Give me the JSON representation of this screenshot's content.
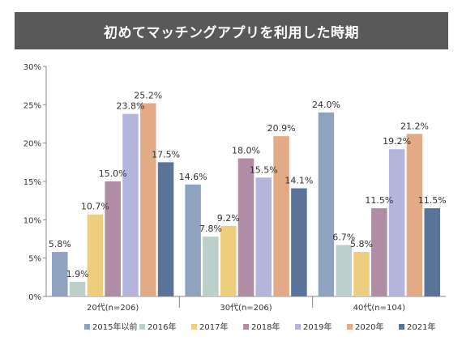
{
  "chart_data": {
    "type": "bar",
    "title": "初めてマッチングアプリを利用した時期",
    "categories": [
      "20代(n=206)",
      "30代(n=206)",
      "40代(n=104)"
    ],
    "series": [
      {
        "name": "2015年以前",
        "color": "#8FA3BF",
        "values": [
          5.8,
          14.6,
          24.0
        ],
        "labels": [
          "5.8%",
          "14.6%",
          "24.0%"
        ]
      },
      {
        "name": "2016年",
        "color": "#BCCFCB",
        "values": [
          1.9,
          7.8,
          6.7
        ],
        "labels": [
          "1.9%",
          "7.8%",
          "6.7%"
        ]
      },
      {
        "name": "2017年",
        "color": "#EDCE7E",
        "values": [
          10.7,
          9.2,
          5.8
        ],
        "labels": [
          "10.7%",
          "9.2%",
          "5.8%"
        ]
      },
      {
        "name": "2018年",
        "color": "#B08DA4",
        "values": [
          15.0,
          18.0,
          11.5
        ],
        "labels": [
          "15.0%",
          "18.0%",
          "11.5%"
        ]
      },
      {
        "name": "2019年",
        "color": "#B4B4DD",
        "values": [
          23.8,
          15.5,
          19.2
        ],
        "labels": [
          "23.8%",
          "15.5%",
          "19.2%"
        ]
      },
      {
        "name": "2020年",
        "color": "#E3AA86",
        "values": [
          25.2,
          20.9,
          21.2
        ],
        "labels": [
          "25.2%",
          "20.9%",
          "21.2%"
        ]
      },
      {
        "name": "2021年",
        "color": "#5A7398",
        "values": [
          17.5,
          14.1,
          11.5
        ],
        "labels": [
          "17.5%",
          "14.1%",
          "11.5%"
        ]
      }
    ],
    "ylim": [
      0,
      30
    ],
    "yticks": [
      0,
      5,
      10,
      15,
      20,
      25,
      30
    ],
    "ytick_labels": [
      "0%",
      "5%",
      "10%",
      "15%",
      "20%",
      "25%",
      "30%"
    ],
    "xlabel": "",
    "ylabel": "",
    "grid": false,
    "legend_position": "bottom"
  }
}
